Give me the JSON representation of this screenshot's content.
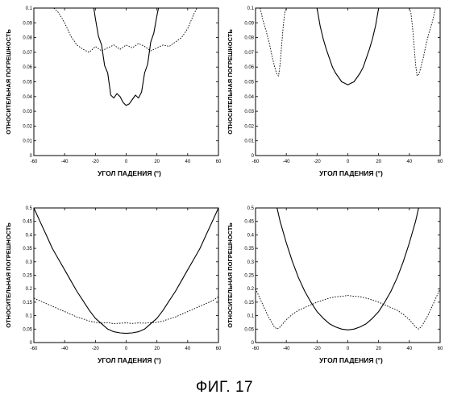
{
  "figure": {
    "caption": "ФИГ. 17"
  },
  "chart_data": [
    {
      "type": "line",
      "xlabel": "УГОЛ ПАДЕНИЯ (°)",
      "ylabel": "ОТНОСИТЕЛЬНАЯ ПОГРЕШНОСТЬ",
      "xlim": [
        -60,
        60
      ],
      "ylim": [
        0,
        0.1
      ],
      "xticks": [
        "-60",
        "-40",
        "-20",
        "0",
        "20",
        "40",
        "60"
      ],
      "yticks": [
        "0",
        "0.01",
        "0.02",
        "0.03",
        "0.04",
        "0.05",
        "0.06",
        "0.07",
        "0.08",
        "0.09",
        "0.1"
      ],
      "grid": false,
      "series": [
        {
          "style": "solid",
          "x": [
            -21,
            -20,
            -18,
            -16,
            -14,
            -12,
            -10,
            -8,
            -6,
            -4,
            -2,
            0,
            2,
            4,
            6,
            8,
            10,
            12,
            14,
            16,
            18,
            20,
            21
          ],
          "y": [
            0.1,
            0.093,
            0.081,
            0.075,
            0.061,
            0.056,
            0.041,
            0.039,
            0.042,
            0.04,
            0.036,
            0.034,
            0.035,
            0.038,
            0.041,
            0.039,
            0.043,
            0.056,
            0.062,
            0.077,
            0.083,
            0.095,
            0.1
          ]
        },
        {
          "style": "dotted",
          "x": [
            -47,
            -44,
            -40,
            -36,
            -32,
            -28,
            -24,
            -20,
            -16,
            -12,
            -8,
            -4,
            0,
            4,
            8,
            12,
            16,
            20,
            24,
            28,
            32,
            36,
            40,
            44,
            46
          ],
          "y": [
            0.1,
            0.097,
            0.09,
            0.081,
            0.075,
            0.072,
            0.07,
            0.074,
            0.071,
            0.073,
            0.075,
            0.072,
            0.075,
            0.073,
            0.076,
            0.074,
            0.071,
            0.073,
            0.075,
            0.074,
            0.077,
            0.08,
            0.086,
            0.096,
            0.1
          ]
        }
      ]
    },
    {
      "type": "line",
      "xlabel": "УГОЛ ПАДЕНИЯ (°)",
      "ylabel": "ОТНОСИТЕЛЬНАЯ ПОГРЕШНОСТЬ",
      "xlim": [
        -60,
        60
      ],
      "ylim": [
        0,
        0.1
      ],
      "xticks": [
        "-60",
        "-40",
        "-20",
        "0",
        "20",
        "40",
        "60"
      ],
      "yticks": [
        "0",
        "0.01",
        "0.02",
        "0.03",
        "0.04",
        "0.05",
        "0.06",
        "0.07",
        "0.08",
        "0.09",
        "0.1"
      ],
      "grid": false,
      "series": [
        {
          "style": "solid",
          "x": [
            -60,
            -40,
            -20,
            -19,
            -18,
            -16,
            -14,
            -12,
            -10,
            -8,
            -6,
            -4,
            -2,
            0,
            2,
            4,
            6,
            8,
            10,
            12,
            14,
            16,
            18,
            19,
            20,
            40,
            60
          ],
          "y": [
            0.1,
            0.1,
            0.1,
            0.094,
            0.088,
            0.079,
            0.072,
            0.066,
            0.06,
            0.056,
            0.053,
            0.05,
            0.049,
            0.048,
            0.049,
            0.05,
            0.053,
            0.056,
            0.06,
            0.066,
            0.072,
            0.079,
            0.088,
            0.094,
            0.1,
            0.1,
            0.1
          ]
        },
        {
          "style": "dotted",
          "x": [
            -57,
            -55,
            -53,
            -51,
            -49,
            -47,
            -46,
            -45,
            -44,
            -43,
            -42,
            -41,
            -40
          ],
          "y": [
            0.1,
            0.091,
            0.084,
            0.076,
            0.066,
            0.058,
            0.055,
            0.054,
            0.062,
            0.075,
            0.088,
            0.097,
            0.1
          ]
        },
        {
          "style": "dotted",
          "x": [
            40,
            41,
            42,
            43,
            44,
            45,
            46,
            47,
            49,
            51,
            53,
            55,
            57
          ],
          "y": [
            0.1,
            0.097,
            0.088,
            0.075,
            0.062,
            0.054,
            0.055,
            0.058,
            0.066,
            0.076,
            0.084,
            0.091,
            0.1
          ]
        }
      ]
    },
    {
      "type": "line",
      "xlabel": "УГОЛ ПАДЕНИЯ (°)",
      "ylabel": "ОТНОСИТЕЛЬНАЯ ПОГРЕШНОСТЬ",
      "xlim": [
        -60,
        60
      ],
      "ylim": [
        0,
        0.5
      ],
      "xticks": [
        "-60",
        "-40",
        "-20",
        "0",
        "20",
        "40",
        "60"
      ],
      "yticks": [
        "0",
        "0.05",
        "0.1",
        "0.15",
        "0.2",
        "0.25",
        "0.3",
        "0.35",
        "0.4",
        "0.45",
        "0.5"
      ],
      "grid": false,
      "series": [
        {
          "style": "solid",
          "x": [
            -60,
            -56,
            -52,
            -48,
            -44,
            -40,
            -36,
            -32,
            -28,
            -24,
            -20,
            -16,
            -12,
            -8,
            -4,
            0,
            4,
            8,
            12,
            16,
            20,
            24,
            28,
            32,
            36,
            40,
            44,
            48,
            52,
            56,
            60
          ],
          "y": [
            0.5,
            0.45,
            0.4,
            0.35,
            0.31,
            0.27,
            0.23,
            0.19,
            0.155,
            0.12,
            0.09,
            0.07,
            0.05,
            0.04,
            0.036,
            0.034,
            0.036,
            0.04,
            0.05,
            0.07,
            0.09,
            0.12,
            0.155,
            0.19,
            0.23,
            0.27,
            0.31,
            0.35,
            0.4,
            0.45,
            0.5
          ]
        },
        {
          "style": "dotted",
          "x": [
            -60,
            -56,
            -52,
            -48,
            -44,
            -40,
            -36,
            -32,
            -28,
            -24,
            -20,
            -16,
            -12,
            -8,
            -4,
            0,
            4,
            8,
            12,
            16,
            20,
            24,
            28,
            32,
            36,
            40,
            44,
            48,
            52,
            56,
            60
          ],
          "y": [
            0.165,
            0.155,
            0.145,
            0.135,
            0.125,
            0.115,
            0.105,
            0.095,
            0.088,
            0.08,
            0.075,
            0.072,
            0.074,
            0.07,
            0.072,
            0.073,
            0.071,
            0.073,
            0.072,
            0.074,
            0.075,
            0.08,
            0.088,
            0.095,
            0.105,
            0.115,
            0.125,
            0.135,
            0.145,
            0.155,
            0.17
          ]
        }
      ]
    },
    {
      "type": "line",
      "xlabel": "УГОЛ ПАДЕНИЯ (°)",
      "ylabel": "ОТНОСИТЕЛЬНАЯ ПОГРЕШНОСТЬ",
      "xlim": [
        -60,
        60
      ],
      "ylim": [
        0,
        0.5
      ],
      "xticks": [
        "-60",
        "-40",
        "-20",
        "0",
        "20",
        "40",
        "60"
      ],
      "yticks": [
        "0",
        "0.05",
        "0.1",
        "0.15",
        "0.2",
        "0.25",
        "0.3",
        "0.35",
        "0.4",
        "0.45",
        "0.5"
      ],
      "grid": false,
      "series": [
        {
          "style": "solid",
          "x": [
            -46,
            -44,
            -40,
            -36,
            -32,
            -28,
            -24,
            -20,
            -16,
            -12,
            -8,
            -4,
            0,
            4,
            8,
            12,
            16,
            20,
            24,
            28,
            32,
            36,
            40,
            44,
            46
          ],
          "y": [
            0.5,
            0.45,
            0.37,
            0.3,
            0.24,
            0.19,
            0.15,
            0.115,
            0.09,
            0.07,
            0.058,
            0.05,
            0.047,
            0.05,
            0.058,
            0.07,
            0.09,
            0.115,
            0.15,
            0.19,
            0.24,
            0.3,
            0.37,
            0.45,
            0.5
          ]
        },
        {
          "style": "dotted",
          "x": [
            -60,
            -56,
            -52,
            -48,
            -46,
            -44,
            -40,
            -36,
            -32,
            -28,
            -24,
            -20,
            -16,
            -12,
            -8,
            -4,
            0,
            4,
            8,
            12,
            16,
            20,
            24,
            28,
            32,
            36,
            40,
            44,
            46,
            48,
            52,
            56,
            60
          ],
          "y": [
            0.2,
            0.15,
            0.1,
            0.06,
            0.05,
            0.058,
            0.085,
            0.105,
            0.12,
            0.13,
            0.14,
            0.15,
            0.158,
            0.165,
            0.17,
            0.172,
            0.175,
            0.172,
            0.17,
            0.165,
            0.158,
            0.15,
            0.14,
            0.13,
            0.12,
            0.105,
            0.085,
            0.058,
            0.05,
            0.06,
            0.1,
            0.15,
            0.2
          ]
        }
      ]
    }
  ]
}
